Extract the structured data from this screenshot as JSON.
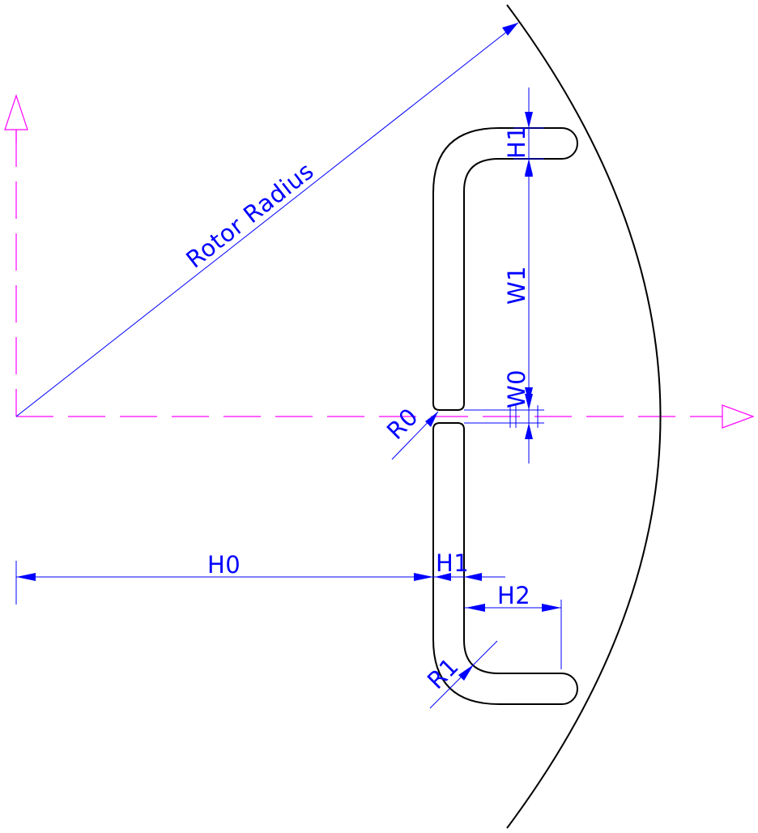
{
  "labels": {
    "rotor_radius": "Rotor Radius",
    "h0": "H0",
    "h1_top": "H1",
    "h1_bottom": "H1",
    "h2": "H2",
    "w0": "W0",
    "w1": "W1",
    "r0": "R0",
    "r1": "R1"
  },
  "colors": {
    "geometry": "#000000",
    "dimension": "#0000ff",
    "axis": "#ff00ff",
    "arrowhead": "#0000ff",
    "background": "#ffffff"
  }
}
